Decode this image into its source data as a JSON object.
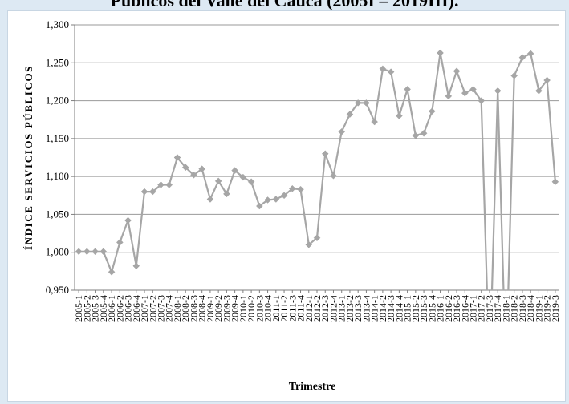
{
  "title": "Públicos del Valle del Cauca (2005I – 2019III).",
  "chart_data": {
    "type": "line",
    "xlabel": "Trimestre",
    "ylabel": "ÍNDICE SERVICIOS PÚBLICOS",
    "ylim": [
      0.95,
      1.3
    ],
    "yticks": [
      "0,950",
      "1,000",
      "1,050",
      "1,100",
      "1,150",
      "1,200",
      "1,250",
      "1,300"
    ],
    "grid": true,
    "line_color": "#a6a6a6",
    "categories": [
      "2005-1",
      "2005-2",
      "2005-3",
      "2005-4",
      "2006-1",
      "2006-2",
      "2006-3",
      "2006-4",
      "2007-1",
      "2007-2",
      "2007-3",
      "2007-4",
      "2008-1",
      "2008-2",
      "2008-3",
      "2008-4",
      "2009-1",
      "2009-2",
      "2009-3",
      "2009-4",
      "2010-1",
      "2010-2",
      "2010-3",
      "2010-4",
      "2011-1",
      "2011-2",
      "2011-3",
      "2011-4",
      "2012-1",
      "2012-2",
      "2012-3",
      "2012-4",
      "2013-1",
      "2013-2",
      "2013-3",
      "2013-4",
      "2014-1",
      "2014-2",
      "2014-3",
      "2014-4",
      "2015-1",
      "2015-2",
      "2015-3",
      "2015-4",
      "2016-1",
      "2016-2",
      "2016-3",
      "2016-4",
      "2017-1",
      "2017-2",
      "2017-3",
      "2017-4",
      "2018-1",
      "2018-2",
      "2018-3",
      "2018-4",
      "2019-1",
      "2019-2",
      "2019-3"
    ],
    "values": [
      1.001,
      1.001,
      1.001,
      1.001,
      0.974,
      1.013,
      1.042,
      0.982,
      1.08,
      1.08,
      1.089,
      1.089,
      1.125,
      1.112,
      1.102,
      1.11,
      1.07,
      1.094,
      1.077,
      1.108,
      1.099,
      1.093,
      1.061,
      1.069,
      1.07,
      1.075,
      1.084,
      1.083,
      1.01,
      1.019,
      1.13,
      1.101,
      1.159,
      1.182,
      1.197,
      1.197,
      1.172,
      1.242,
      1.238,
      1.18,
      1.215,
      1.154,
      1.157,
      1.186,
      1.263,
      1.206,
      1.239,
      1.21,
      1.215,
      1.2,
      0.84,
      1.213,
      0.84,
      1.233,
      1.257,
      1.262,
      1.213,
      1.227,
      1.093
    ]
  }
}
